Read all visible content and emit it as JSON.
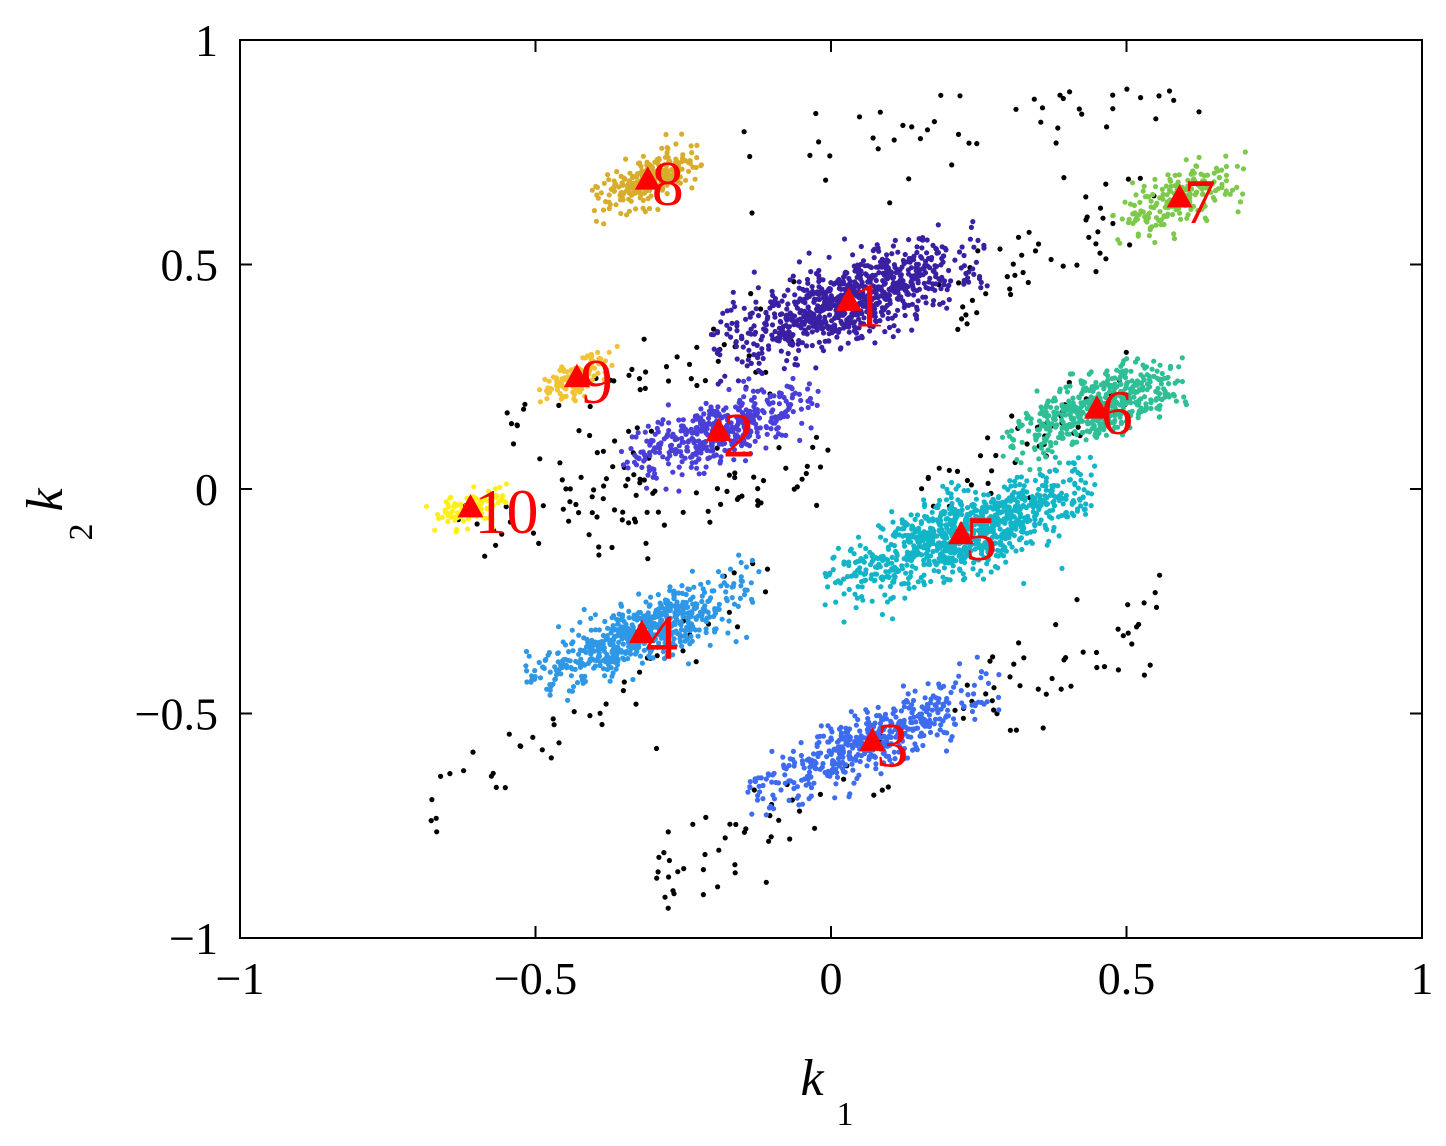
{
  "chart_data": {
    "type": "scatter",
    "title": "",
    "xlabel": "k",
    "xlabel_sub": "1",
    "ylabel": "k",
    "ylabel_sub": "2",
    "xlim": [
      -1,
      1
    ],
    "ylim": [
      -1,
      1
    ],
    "x_ticks": [
      -1,
      -0.5,
      0,
      0.5,
      1
    ],
    "y_ticks": [
      -1,
      -0.5,
      0,
      0.5,
      1
    ],
    "x_tick_labels": [
      "−1",
      "−0.5",
      "0",
      "0.5",
      "1"
    ],
    "y_tick_labels": [
      "−1",
      "−0.5",
      "0",
      "0.5",
      "1"
    ],
    "grid": false,
    "box": true,
    "clusters": [
      {
        "label": "1",
        "color": "#3b1fa3",
        "center": [
          0.03,
          0.42
        ],
        "extent_x": [
          -0.2,
          0.27
        ],
        "slope": 0.45,
        "spread": 0.045,
        "count": 900
      },
      {
        "label": "2",
        "color": "#4a3fd8",
        "center": [
          -0.19,
          0.13
        ],
        "extent_x": [
          -0.36,
          -0.02
        ],
        "slope": 0.42,
        "spread": 0.035,
        "count": 450
      },
      {
        "label": "3",
        "color": "#3d6cf0",
        "center": [
          0.07,
          -0.56
        ],
        "extent_x": [
          -0.15,
          0.28
        ],
        "slope": 0.55,
        "spread": 0.035,
        "count": 500
      },
      {
        "label": "4",
        "color": "#2e98e6",
        "center": [
          -0.32,
          -0.32
        ],
        "extent_x": [
          -0.5,
          -0.1
        ],
        "slope": 0.5,
        "spread": 0.035,
        "count": 650
      },
      {
        "label": "5",
        "color": "#12b5c8",
        "center": [
          0.22,
          -0.1
        ],
        "extent_x": [
          0.0,
          0.46
        ],
        "slope": 0.45,
        "spread": 0.045,
        "count": 950
      },
      {
        "label": "6",
        "color": "#2ebf96",
        "center": [
          0.45,
          0.18
        ],
        "extent_x": [
          0.28,
          0.6
        ],
        "slope": 0.45,
        "spread": 0.035,
        "count": 500
      },
      {
        "label": "7",
        "color": "#7cc94b",
        "center": [
          0.59,
          0.65
        ],
        "extent_x": [
          0.47,
          0.7
        ],
        "slope": 0.5,
        "spread": 0.03,
        "count": 200
      },
      {
        "label": "8",
        "color": "#d8ad2c",
        "center": [
          -0.31,
          0.69
        ],
        "extent_x": [
          -0.39,
          -0.2
        ],
        "slope": 0.55,
        "spread": 0.025,
        "count": 250
      },
      {
        "label": "9",
        "color": "#f2c335",
        "center": [
          -0.43,
          0.25
        ],
        "extent_x": [
          -0.5,
          -0.35
        ],
        "slope": 0.5,
        "spread": 0.02,
        "count": 130
      },
      {
        "label": "10",
        "color": "#ffee1a",
        "center": [
          -0.61,
          -0.04
        ],
        "extent_x": [
          -0.69,
          -0.53
        ],
        "slope": 0.3,
        "spread": 0.02,
        "count": 100
      }
    ],
    "noise": {
      "color": "#000000",
      "count": 420
    },
    "center_marker": {
      "shape": "triangle",
      "color": "#ff0000"
    }
  }
}
